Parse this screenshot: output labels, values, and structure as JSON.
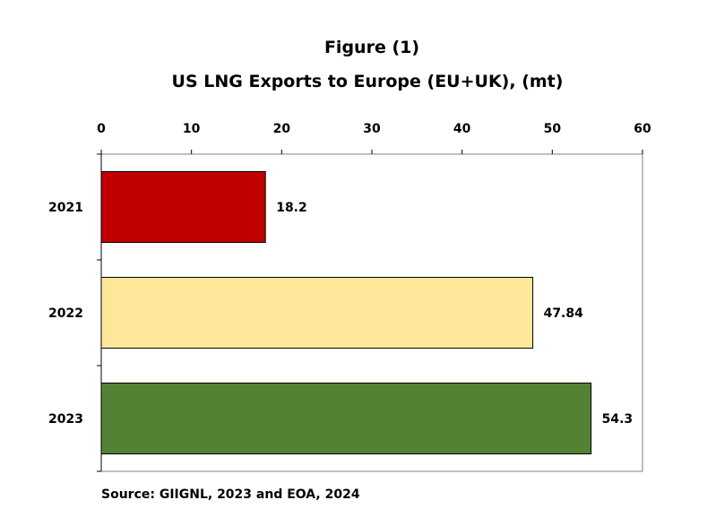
{
  "chart_data": {
    "type": "bar",
    "orientation": "horizontal",
    "title": "Figure (1)",
    "subtitle": "US LNG Exports to Europe (EU+UK), (mt)",
    "categories": [
      "2021",
      "2022",
      "2023"
    ],
    "values": [
      18.2,
      47.84,
      54.3
    ],
    "value_labels": [
      "18.2",
      "47.84",
      "54.3"
    ],
    "bar_colors": [
      "#c00000",
      "#ffe699",
      "#548235"
    ],
    "xlim": [
      0,
      60
    ],
    "x_ticks": [
      0,
      10,
      20,
      30,
      40,
      50,
      60
    ],
    "x_axis_position": "top",
    "xlabel": "",
    "ylabel": "",
    "grid": false,
    "legend": false,
    "source": "Source: GIIGNL, 2023 and EOA, 2024"
  }
}
